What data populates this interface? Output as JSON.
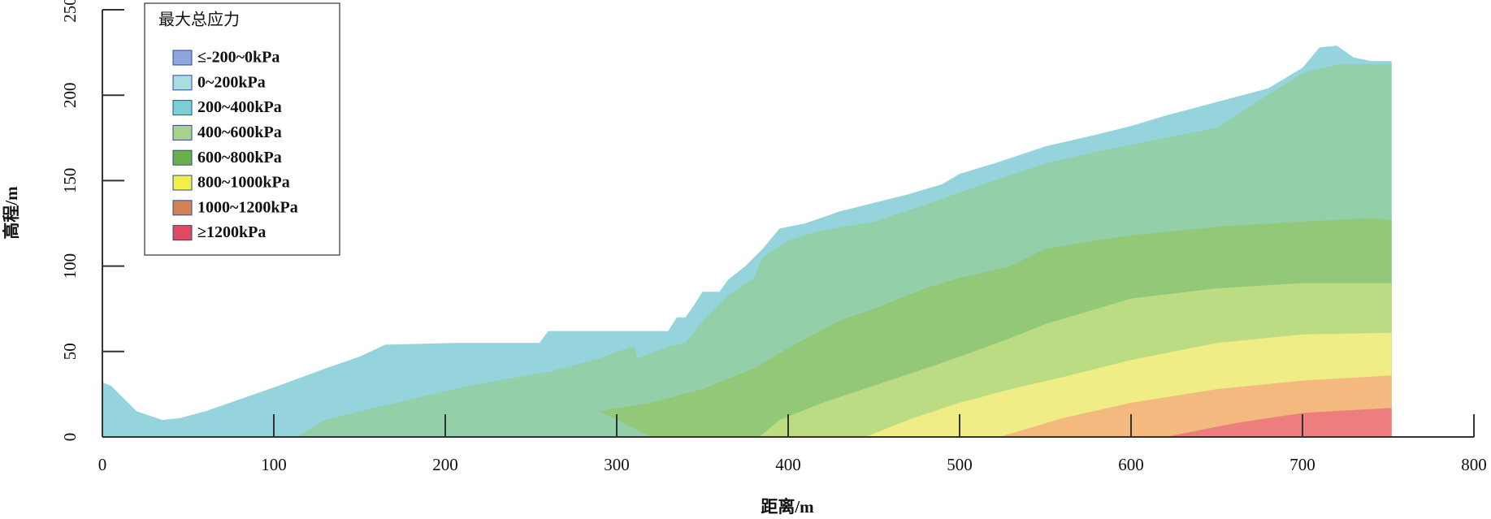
{
  "chart_data": {
    "type": "area",
    "xlabel": "距离/m",
    "ylabel": "高程/m",
    "xlim": [
      0,
      800
    ],
    "ylim": [
      0,
      250
    ],
    "xticks": [
      0,
      100,
      200,
      300,
      400,
      500,
      600,
      700,
      800
    ],
    "yticks": [
      0,
      50,
      100,
      150,
      200,
      250
    ],
    "legend": {
      "title": "最大总应力",
      "position": "upper left",
      "items": [
        {
          "label": "≤-200~0kPa",
          "color": "#8ea6dc"
        },
        {
          "label": "0~200kPa",
          "color": "#a9dde0"
        },
        {
          "label": "200~400kPa",
          "color": "#7ecfd3"
        },
        {
          "label": "400~600kPa",
          "color": "#a9d38a"
        },
        {
          "label": "600~800kPa",
          "color": "#6aaf4b"
        },
        {
          "label": "800~1000kPa",
          "color": "#f2ee4a"
        },
        {
          "label": "1000~1200kPa",
          "color": "#d2834f"
        },
        {
          "label": "≥1200kPa",
          "color": "#de4b5f"
        }
      ]
    },
    "series": [
      {
        "color": "#96d4dd",
        "x": [
          0,
          5,
          15,
          20,
          35,
          45,
          60,
          80,
          100,
          130,
          150,
          165,
          205,
          255,
          260,
          330,
          335,
          340,
          345,
          350,
          360,
          365,
          375,
          385,
          395,
          410,
          430,
          450,
          470,
          490,
          500,
          520,
          550,
          580,
          600,
          620,
          650,
          680,
          700,
          710,
          720,
          730,
          740,
          752
        ],
        "values": [
          32,
          30,
          20,
          15,
          10,
          11,
          15,
          22,
          29,
          40,
          47,
          54,
          55,
          55,
          62,
          62,
          70,
          70,
          77,
          85,
          85,
          92,
          100,
          110,
          122,
          125,
          132,
          137,
          142,
          148,
          154,
          160,
          170,
          177,
          182,
          188,
          196,
          204,
          216,
          228,
          229,
          222,
          220,
          220
        ]
      },
      {
        "color": "#93cfa8",
        "x": [
          113,
          130,
          150,
          180,
          200,
          230,
          260,
          290,
          300,
          310,
          312,
          330,
          340,
          350,
          355,
          365,
          380,
          385,
          400,
          420,
          450,
          480,
          500,
          520,
          550,
          580,
          600,
          650,
          700,
          720,
          752
        ],
        "values": [
          0,
          10,
          15,
          22,
          27,
          33,
          38,
          46,
          50,
          53,
          46,
          53,
          55,
          68,
          73,
          83,
          93,
          105,
          115,
          121,
          126,
          136,
          143,
          150,
          160,
          167,
          171,
          181,
          213,
          218,
          218
        ]
      },
      {
        "color": "#92c878",
        "x": [
          320,
          290,
          320,
          350,
          380,
          400,
          430,
          450,
          480,
          500,
          530,
          550,
          580,
          600,
          650,
          700,
          740,
          752
        ],
        "values": [
          0,
          15,
          20,
          28,
          40,
          52,
          68,
          75,
          87,
          93,
          100,
          110,
          115,
          118,
          123,
          126,
          128,
          127
        ]
      },
      {
        "color": "#bcdc84",
        "x": [
          383,
          395,
          420,
          450,
          480,
          500,
          530,
          550,
          580,
          600,
          650,
          700,
          752
        ],
        "values": [
          0,
          10,
          20,
          30,
          40,
          47,
          58,
          66,
          75,
          81,
          87,
          90,
          90
        ]
      },
      {
        "color": "#f0ec86",
        "x": [
          445,
          470,
          500,
          530,
          560,
          600,
          650,
          700,
          752
        ],
        "values": [
          0,
          10,
          20,
          28,
          35,
          45,
          55,
          60,
          61
        ]
      },
      {
        "color": "#f3b97f",
        "x": [
          523,
          540,
          560,
          600,
          650,
          700,
          752
        ],
        "values": [
          0,
          5,
          11,
          20,
          28,
          33,
          36
        ]
      },
      {
        "color": "#ee7e7e",
        "x": [
          620,
          640,
          660,
          700,
          752
        ],
        "values": [
          0,
          4,
          8,
          14,
          17
        ]
      }
    ]
  }
}
